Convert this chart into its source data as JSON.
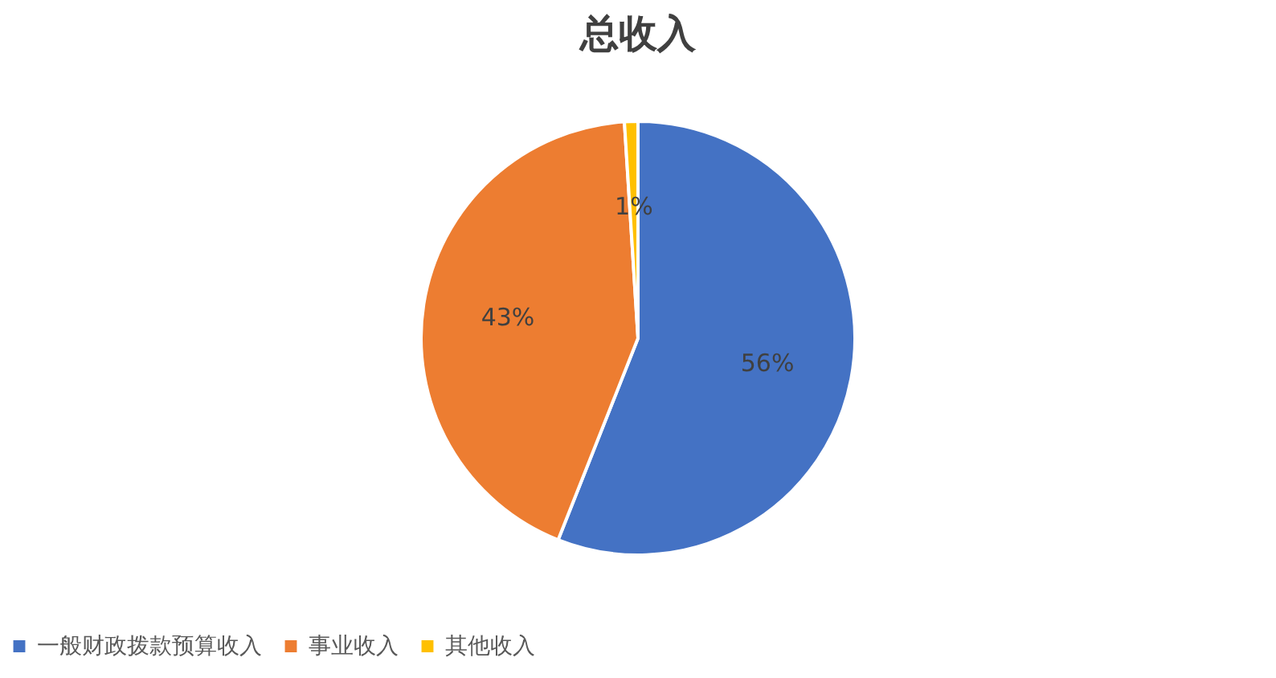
{
  "chart_data": {
    "type": "pie",
    "title": "总收入",
    "categories": [
      "一般财政拨款预算收入",
      "事业收入",
      "其他收入"
    ],
    "values": [
      56,
      43,
      1
    ],
    "colors": [
      "#4472c4",
      "#ed7d31",
      "#ffc000"
    ],
    "value_labels": [
      "56%",
      "43%",
      "1%"
    ],
    "legend": "bottom"
  }
}
